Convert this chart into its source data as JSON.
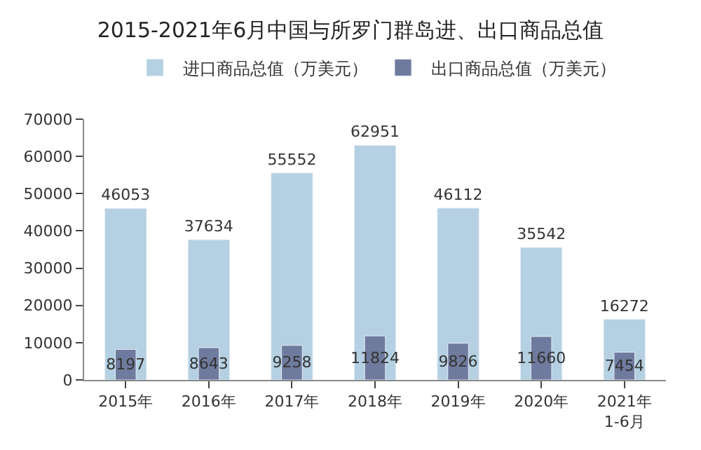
{
  "chart_data": {
    "type": "bar",
    "title": "2015-2021年6月中国与所罗门群岛进、出口商品总值",
    "categories": [
      "2015年",
      "2016年",
      "2017年",
      "2018年",
      "2019年",
      "2020年",
      "2021年\n1-6月"
    ],
    "series": [
      {
        "name": "进口商品总值（万美元）",
        "color": "#b4d0e2",
        "values": [
          46053,
          37634,
          55552,
          62951,
          46112,
          35542,
          16272
        ]
      },
      {
        "name": "出口商品总值（万美元）",
        "color": "#6f7b9e",
        "values": [
          8197,
          8643,
          9258,
          11824,
          9826,
          11660,
          7454
        ]
      }
    ],
    "ylim": [
      0,
      70000
    ],
    "yticks": [
      0,
      10000,
      20000,
      30000,
      40000,
      50000,
      60000,
      70000
    ],
    "data_labels": true,
    "legend": "top"
  }
}
